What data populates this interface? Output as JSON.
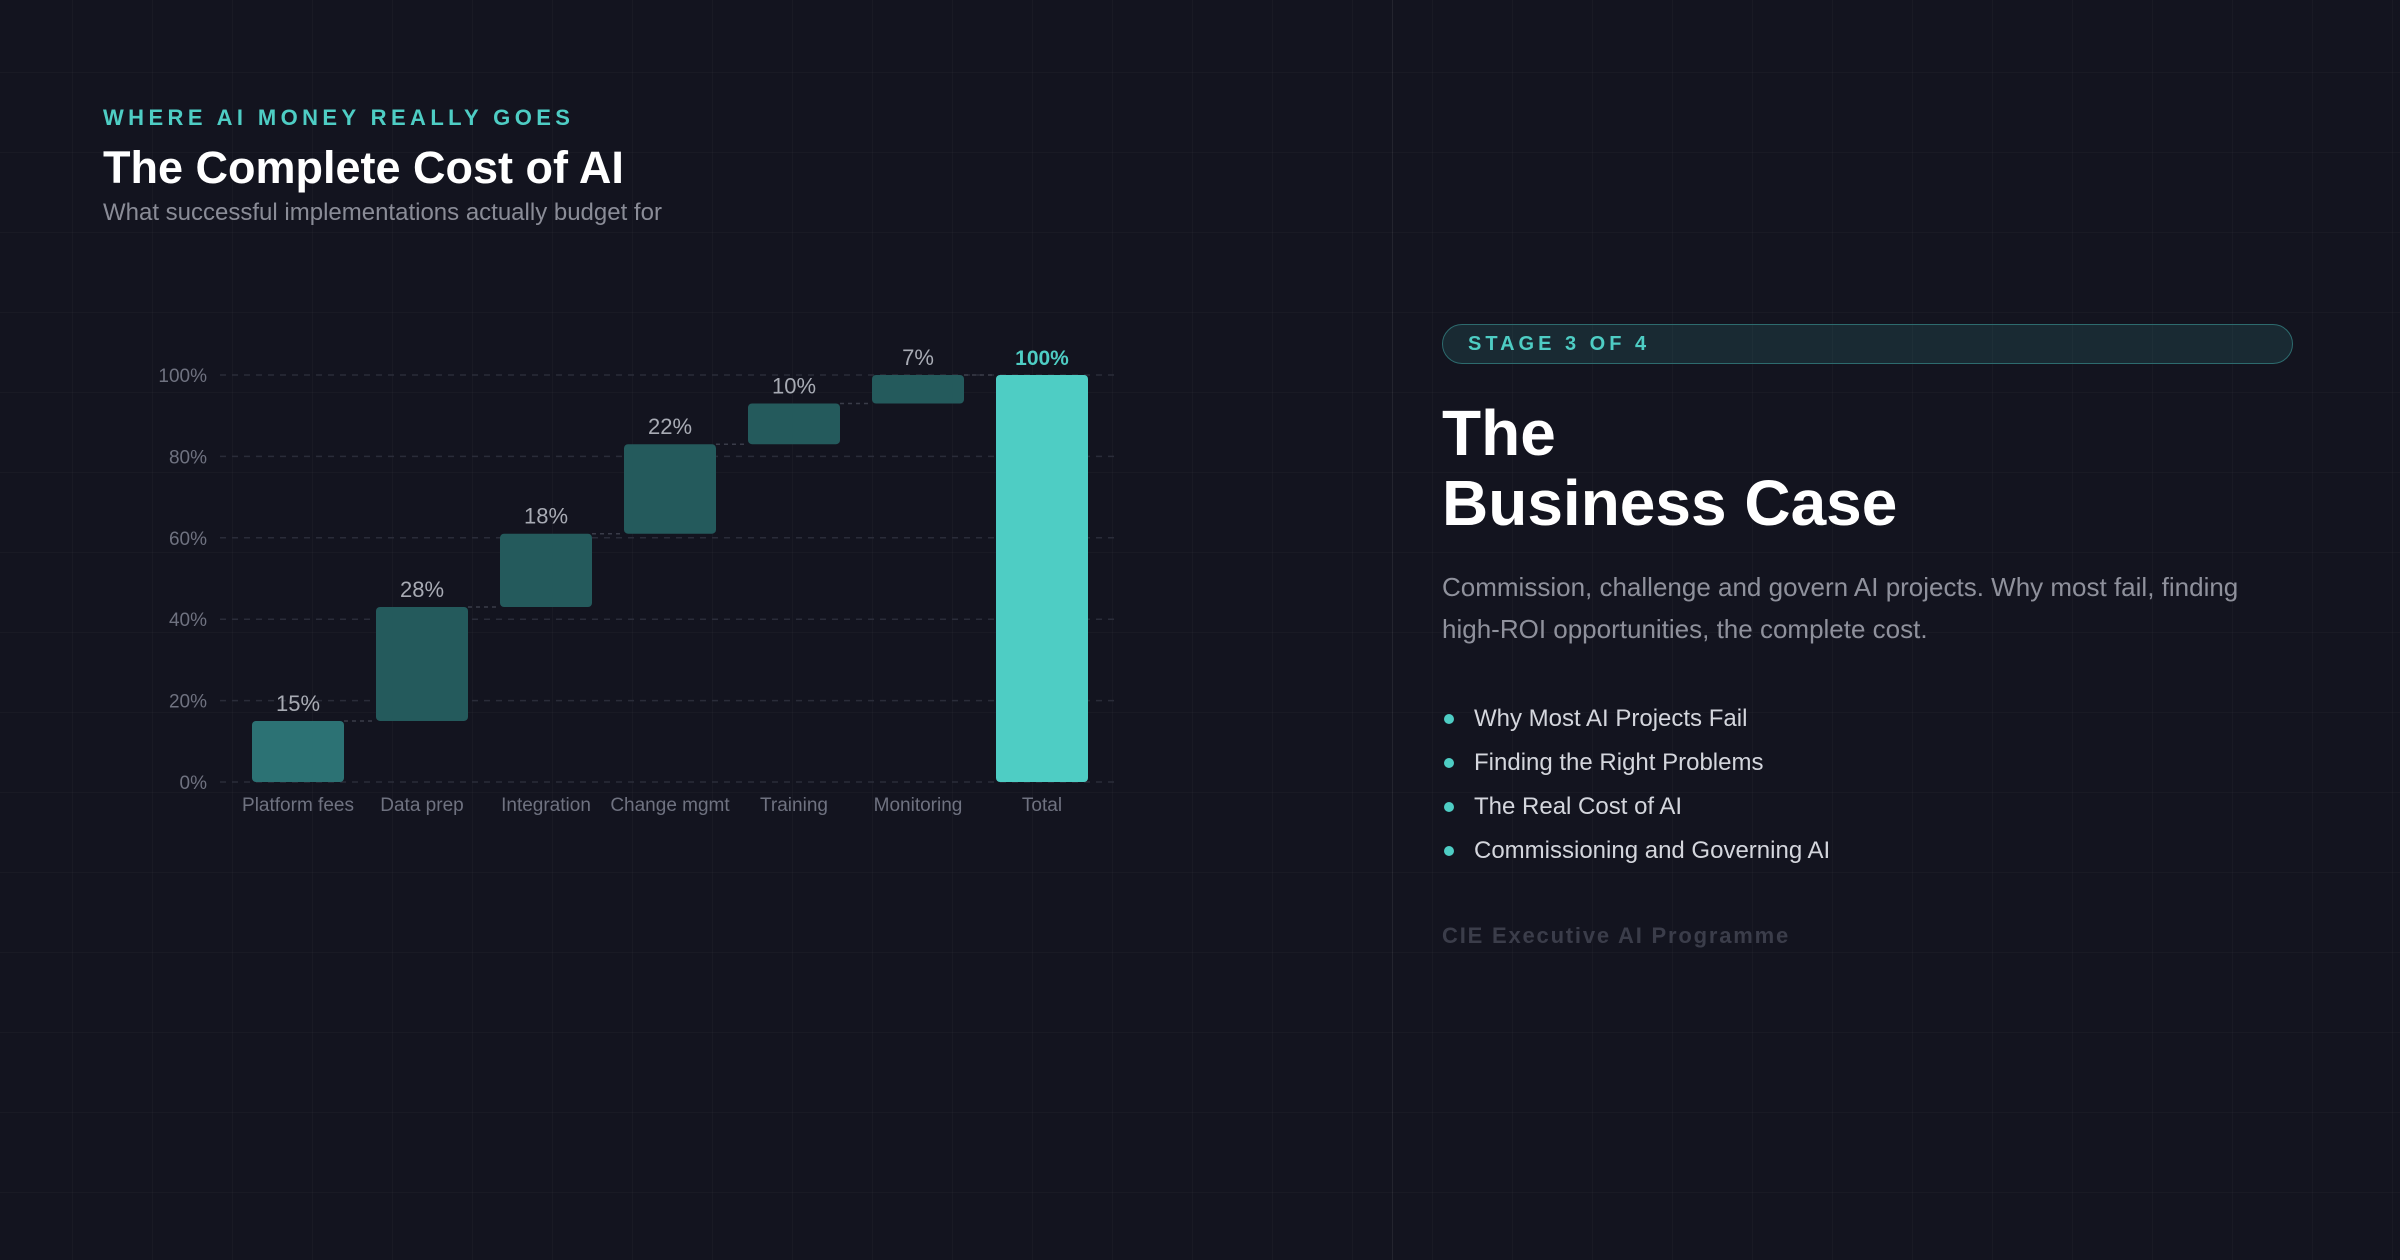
{
  "header": {
    "eyebrow": "WHERE AI MONEY REALLY GOES",
    "title": "The Complete Cost of AI",
    "subtitle": "What successful implementations actually budget for"
  },
  "chart_data": {
    "type": "bar",
    "subtype": "waterfall",
    "categories": [
      "Platform fees",
      "Data prep",
      "Integration",
      "Change mgmt",
      "Training",
      "Monitoring",
      "Total"
    ],
    "values": [
      15,
      28,
      18,
      22,
      10,
      7,
      100
    ],
    "value_labels": [
      "15%",
      "28%",
      "18%",
      "22%",
      "10%",
      "7%",
      "100%"
    ],
    "total_category": "Total",
    "y_ticks": [
      "0%",
      "20%",
      "40%",
      "60%",
      "80%",
      "100%"
    ],
    "ylim": [
      0,
      100
    ],
    "grid": true,
    "legend": "none",
    "colors": {
      "step_bar": "#245a5c",
      "first_bar": "#2c7274",
      "total_bar": "#4ecdc4",
      "total_label": "#4ecdc4",
      "step_label": "#a8abb4",
      "axis_label": "#6f7280",
      "gridline": "#2a2c39",
      "connector": "#3a3c49"
    }
  },
  "panel": {
    "stage": "STAGE 3 OF 4",
    "title_line1": "The",
    "title_line2": "Business Case",
    "description": "Commission, challenge and govern AI projects. Why most fail, finding high-ROI opportunities, the complete cost.",
    "topics": [
      "Why Most AI Projects Fail",
      "Finding the Right Problems",
      "The Real Cost of AI",
      "Commissioning and Governing AI"
    ],
    "footer": "CIE Executive AI Programme"
  }
}
